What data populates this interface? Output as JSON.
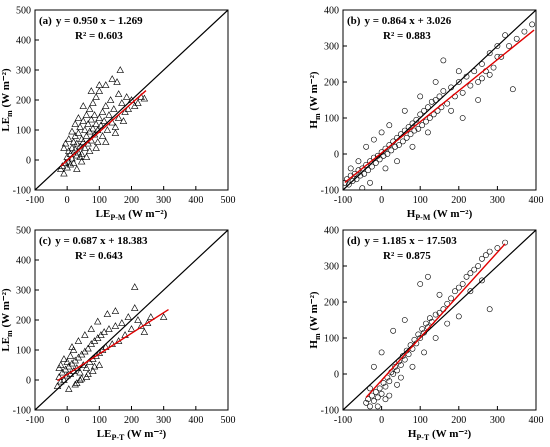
{
  "chart_data": [
    {
      "type": "scatter",
      "panel_label": "(a)",
      "equation": "y = 0.950 x − 1.269",
      "r2": "R² = 0.603",
      "ylabel": {
        "main": "LE",
        "sub": "m",
        "unit": " (W m⁻²)"
      },
      "xlabel": {
        "main": "LE",
        "sub": "P-M",
        "unit": " (W m⁻²)"
      },
      "marker": "triangle",
      "xlim": [
        -100,
        500
      ],
      "ylim": [
        -100,
        500
      ],
      "xticks": [
        "-100",
        "0",
        "100",
        "200",
        "300",
        "400",
        "500"
      ],
      "yticks": [
        "-100",
        "0",
        "100",
        "200",
        "300",
        "400",
        "500"
      ],
      "one_to_one_line": true,
      "fit": {
        "slope": 0.95,
        "intercept": -1.269,
        "x_range": [
          -20,
          245
        ],
        "color": "#e00000"
      },
      "points": [
        [
          -20,
          -30
        ],
        [
          -15,
          -20
        ],
        [
          -10,
          -45
        ],
        [
          -5,
          -10
        ],
        [
          0,
          -25
        ],
        [
          0,
          10
        ],
        [
          5,
          -5
        ],
        [
          5,
          30
        ],
        [
          10,
          20
        ],
        [
          10,
          -15
        ],
        [
          15,
          40
        ],
        [
          15,
          5
        ],
        [
          20,
          60
        ],
        [
          20,
          -10
        ],
        [
          25,
          35
        ],
        [
          25,
          80
        ],
        [
          30,
          15
        ],
        [
          30,
          55
        ],
        [
          35,
          90
        ],
        [
          35,
          25
        ],
        [
          40,
          45
        ],
        [
          40,
          110
        ],
        [
          45,
          70
        ],
        [
          45,
          20
        ],
        [
          50,
          130
        ],
        [
          50,
          60
        ],
        [
          55,
          40
        ],
        [
          55,
          100
        ],
        [
          60,
          80
        ],
        [
          60,
          150
        ],
        [
          65,
          55
        ],
        [
          65,
          120
        ],
        [
          70,
          95
        ],
        [
          70,
          170
        ],
        [
          75,
          65
        ],
        [
          75,
          135
        ],
        [
          80,
          105
        ],
        [
          80,
          190
        ],
        [
          85,
          85
        ],
        [
          85,
          150
        ],
        [
          90,
          120
        ],
        [
          90,
          210
        ],
        [
          95,
          100
        ],
        [
          95,
          60
        ],
        [
          100,
          140
        ],
        [
          100,
          230
        ],
        [
          105,
          115
        ],
        [
          110,
          160
        ],
        [
          110,
          80
        ],
        [
          115,
          130
        ],
        [
          120,
          180
        ],
        [
          125,
          100
        ],
        [
          130,
          150
        ],
        [
          135,
          200
        ],
        [
          140,
          125
        ],
        [
          145,
          170
        ],
        [
          150,
          110
        ],
        [
          155,
          260
        ],
        [
          160,
          140
        ],
        [
          165,
          300
        ],
        [
          170,
          190
        ],
        [
          175,
          130
        ],
        [
          180,
          160
        ],
        [
          185,
          210
        ],
        [
          190,
          170
        ],
        [
          200,
          200
        ],
        [
          210,
          180
        ],
        [
          220,
          190
        ],
        [
          230,
          210
        ],
        [
          240,
          205
        ],
        [
          30,
          -30
        ],
        [
          45,
          -5
        ],
        [
          60,
          10
        ],
        [
          15,
          95
        ],
        [
          35,
          140
        ],
        [
          50,
          180
        ],
        [
          75,
          230
        ],
        [
          100,
          250
        ],
        [
          120,
          250
        ],
        [
          140,
          270
        ],
        [
          160,
          220
        ],
        [
          5,
          70
        ],
        [
          -10,
          40
        ],
        [
          -5,
          55
        ],
        [
          25,
          120
        ],
        [
          40,
          10
        ],
        [
          70,
          30
        ],
        [
          90,
          40
        ],
        [
          120,
          60
        ],
        [
          150,
          90
        ]
      ]
    },
    {
      "type": "scatter",
      "panel_label": "(b)",
      "equation": "y = 0.864 x + 3.026",
      "r2": "R² = 0.883",
      "ylabel": {
        "main": "H",
        "sub": "m",
        "unit": " (W m⁻²)"
      },
      "xlabel": {
        "main": "H",
        "sub": "P-M",
        "unit": " (W m⁻²)"
      },
      "marker": "circle",
      "xlim": [
        -100,
        400
      ],
      "ylim": [
        -100,
        400
      ],
      "xticks": [
        "-100",
        "0",
        "100",
        "200",
        "300",
        "400"
      ],
      "yticks": [
        "-100",
        "0",
        "100",
        "200",
        "300",
        "400"
      ],
      "one_to_one_line": true,
      "fit": {
        "slope": 0.864,
        "intercept": 3.026,
        "x_range": [
          -95,
          395
        ],
        "color": "#e00000"
      },
      "points": [
        [
          -95,
          -80
        ],
        [
          -90,
          -70
        ],
        [
          -85,
          -85
        ],
        [
          -80,
          -60
        ],
        [
          -75,
          -75
        ],
        [
          -70,
          -55
        ],
        [
          -65,
          -70
        ],
        [
          -60,
          -45
        ],
        [
          -55,
          -60
        ],
        [
          -50,
          -40
        ],
        [
          -45,
          -55
        ],
        [
          -40,
          -30
        ],
        [
          -35,
          -45
        ],
        [
          -30,
          -20
        ],
        [
          -25,
          -35
        ],
        [
          -20,
          -10
        ],
        [
          -15,
          -25
        ],
        [
          -10,
          -5
        ],
        [
          -5,
          -15
        ],
        [
          0,
          5
        ],
        [
          5,
          -5
        ],
        [
          10,
          15
        ],
        [
          15,
          0
        ],
        [
          20,
          25
        ],
        [
          25,
          10
        ],
        [
          30,
          35
        ],
        [
          35,
          20
        ],
        [
          40,
          45
        ],
        [
          45,
          25
        ],
        [
          50,
          55
        ],
        [
          55,
          35
        ],
        [
          60,
          65
        ],
        [
          65,
          45
        ],
        [
          70,
          75
        ],
        [
          75,
          55
        ],
        [
          80,
          85
        ],
        [
          85,
          65
        ],
        [
          90,
          95
        ],
        [
          95,
          70
        ],
        [
          100,
          110
        ],
        [
          105,
          80
        ],
        [
          110,
          120
        ],
        [
          115,
          90
        ],
        [
          120,
          130
        ],
        [
          125,
          100
        ],
        [
          130,
          145
        ],
        [
          135,
          110
        ],
        [
          140,
          150
        ],
        [
          145,
          120
        ],
        [
          150,
          160
        ],
        [
          155,
          130
        ],
        [
          160,
          175
        ],
        [
          170,
          140
        ],
        [
          180,
          185
        ],
        [
          190,
          160
        ],
        [
          200,
          200
        ],
        [
          210,
          170
        ],
        [
          220,
          215
        ],
        [
          230,
          190
        ],
        [
          240,
          230
        ],
        [
          250,
          200
        ],
        [
          260,
          250
        ],
        [
          270,
          230
        ],
        [
          280,
          280
        ],
        [
          290,
          240
        ],
        [
          300,
          300
        ],
        [
          310,
          270
        ],
        [
          320,
          330
        ],
        [
          340,
          180
        ],
        [
          350,
          320
        ],
        [
          370,
          340
        ],
        [
          390,
          360
        ],
        [
          160,
          260
        ],
        [
          200,
          230
        ],
        [
          60,
          120
        ],
        [
          20,
          80
        ],
        [
          -40,
          20
        ],
        [
          -60,
          -20
        ],
        [
          -80,
          -40
        ],
        [
          40,
          -20
        ],
        [
          80,
          20
        ],
        [
          120,
          60
        ],
        [
          0,
          60
        ],
        [
          -20,
          40
        ],
        [
          100,
          160
        ],
        [
          140,
          200
        ],
        [
          180,
          120
        ],
        [
          250,
          150
        ],
        [
          210,
          100
        ],
        [
          -50,
          -95
        ],
        [
          -30,
          -80
        ],
        [
          10,
          -40
        ],
        [
          260,
          210
        ],
        [
          280,
          220
        ],
        [
          300,
          270
        ],
        [
          330,
          300
        ]
      ]
    },
    {
      "type": "scatter",
      "panel_label": "(c)",
      "equation": "y = 0.687 x + 18.383",
      "r2": "R² = 0.643",
      "ylabel": {
        "main": "LE",
        "sub": "m",
        "unit": " (W m⁻²)"
      },
      "xlabel": {
        "main": "LE",
        "sub": "P-T",
        "unit": " (W m⁻²)"
      },
      "marker": "triangle",
      "xlim": [
        -100,
        500
      ],
      "ylim": [
        -100,
        500
      ],
      "xticks": [
        "-100",
        "0",
        "100",
        "200",
        "300",
        "400",
        "500"
      ],
      "yticks": [
        "-100",
        "0",
        "100",
        "200",
        "300",
        "400",
        "500"
      ],
      "one_to_one_line": true,
      "fit": {
        "slope": 0.687,
        "intercept": 18.383,
        "x_range": [
          -30,
          315
        ],
        "color": "#e00000"
      },
      "points": [
        [
          -30,
          -20
        ],
        [
          -25,
          10
        ],
        [
          -20,
          -5
        ],
        [
          -15,
          25
        ],
        [
          -10,
          0
        ],
        [
          -5,
          35
        ],
        [
          0,
          15
        ],
        [
          5,
          45
        ],
        [
          10,
          20
        ],
        [
          15,
          55
        ],
        [
          20,
          30
        ],
        [
          25,
          65
        ],
        [
          30,
          40
        ],
        [
          35,
          75
        ],
        [
          40,
          25
        ],
        [
          45,
          85
        ],
        [
          50,
          50
        ],
        [
          55,
          95
        ],
        [
          60,
          40
        ],
        [
          65,
          105
        ],
        [
          70,
          60
        ],
        [
          75,
          120
        ],
        [
          80,
          70
        ],
        [
          85,
          130
        ],
        [
          90,
          80
        ],
        [
          95,
          140
        ],
        [
          100,
          90
        ],
        [
          105,
          150
        ],
        [
          110,
          100
        ],
        [
          115,
          160
        ],
        [
          120,
          110
        ],
        [
          130,
          170
        ],
        [
          140,
          120
        ],
        [
          150,
          180
        ],
        [
          160,
          130
        ],
        [
          170,
          190
        ],
        [
          180,
          150
        ],
        [
          190,
          210
        ],
        [
          200,
          170
        ],
        [
          210,
          240
        ],
        [
          220,
          200
        ],
        [
          230,
          180
        ],
        [
          240,
          160
        ],
        [
          250,
          190
        ],
        [
          260,
          210
        ],
        [
          300,
          210
        ],
        [
          210,
          310
        ],
        [
          0,
          60
        ],
        [
          10,
          80
        ],
        [
          20,
          100
        ],
        [
          -20,
          50
        ],
        [
          -10,
          70
        ],
        [
          30,
          -10
        ],
        [
          40,
          0
        ],
        [
          60,
          10
        ],
        [
          80,
          30
        ],
        [
          100,
          50
        ],
        [
          5,
          -30
        ],
        [
          25,
          -15
        ],
        [
          45,
          5
        ],
        [
          65,
          20
        ],
        [
          85,
          45
        ],
        [
          -25,
          40
        ],
        [
          15,
          110
        ],
        [
          35,
          130
        ],
        [
          55,
          150
        ],
        [
          75,
          170
        ],
        [
          95,
          195
        ],
        [
          125,
          220
        ],
        [
          150,
          230
        ]
      ]
    },
    {
      "type": "scatter",
      "panel_label": "(d)",
      "equation": "y = 1.185 x − 17.503",
      "r2": "R² = 0.875",
      "ylabel": {
        "main": "H",
        "sub": "m",
        "unit": " (W m⁻²)"
      },
      "xlabel": {
        "main": "H",
        "sub": "P-T",
        "unit": " (W m⁻²)"
      },
      "marker": "circle",
      "xlim": [
        -100,
        400
      ],
      "ylim": [
        -100,
        400
      ],
      "xticks": [
        "-100",
        "0",
        "100",
        "200",
        "300",
        "400"
      ],
      "yticks": [
        "-100",
        "0",
        "100",
        "200",
        "300",
        "400"
      ],
      "one_to_one_line": true,
      "fit": {
        "slope": 1.185,
        "intercept": -17.503,
        "x_range": [
          -40,
          320
        ],
        "color": "#e00000"
      },
      "points": [
        [
          -40,
          -80
        ],
        [
          -35,
          -70
        ],
        [
          -30,
          -90
        ],
        [
          -25,
          -60
        ],
        [
          -20,
          -75
        ],
        [
          -15,
          -50
        ],
        [
          -10,
          -65
        ],
        [
          -5,
          -40
        ],
        [
          0,
          -55
        ],
        [
          5,
          -25
        ],
        [
          10,
          -35
        ],
        [
          15,
          -10
        ],
        [
          20,
          -20
        ],
        [
          25,
          5
        ],
        [
          30,
          0
        ],
        [
          35,
          20
        ],
        [
          40,
          10
        ],
        [
          45,
          35
        ],
        [
          50,
          25
        ],
        [
          55,
          50
        ],
        [
          60,
          40
        ],
        [
          65,
          65
        ],
        [
          70,
          55
        ],
        [
          75,
          80
        ],
        [
          80,
          70
        ],
        [
          85,
          95
        ],
        [
          90,
          85
        ],
        [
          95,
          110
        ],
        [
          100,
          100
        ],
        [
          105,
          125
        ],
        [
          110,
          115
        ],
        [
          115,
          140
        ],
        [
          120,
          130
        ],
        [
          125,
          155
        ],
        [
          130,
          145
        ],
        [
          140,
          165
        ],
        [
          150,
          170
        ],
        [
          160,
          180
        ],
        [
          170,
          195
        ],
        [
          180,
          210
        ],
        [
          190,
          230
        ],
        [
          200,
          240
        ],
        [
          210,
          250
        ],
        [
          220,
          270
        ],
        [
          230,
          280
        ],
        [
          240,
          290
        ],
        [
          250,
          300
        ],
        [
          260,
          320
        ],
        [
          270,
          330
        ],
        [
          280,
          340
        ],
        [
          300,
          350
        ],
        [
          320,
          365
        ],
        [
          100,
          250
        ],
        [
          120,
          270
        ],
        [
          150,
          220
        ],
        [
          60,
          150
        ],
        [
          30,
          120
        ],
        [
          0,
          60
        ],
        [
          -20,
          20
        ],
        [
          20,
          -60
        ],
        [
          50,
          -10
        ],
        [
          80,
          20
        ],
        [
          110,
          60
        ],
        [
          140,
          100
        ],
        [
          170,
          140
        ],
        [
          200,
          160
        ],
        [
          230,
          230
        ],
        [
          260,
          260
        ],
        [
          280,
          180
        ],
        [
          -30,
          -40
        ],
        [
          -10,
          -90
        ],
        [
          10,
          -70
        ],
        [
          40,
          -30
        ]
      ]
    }
  ]
}
